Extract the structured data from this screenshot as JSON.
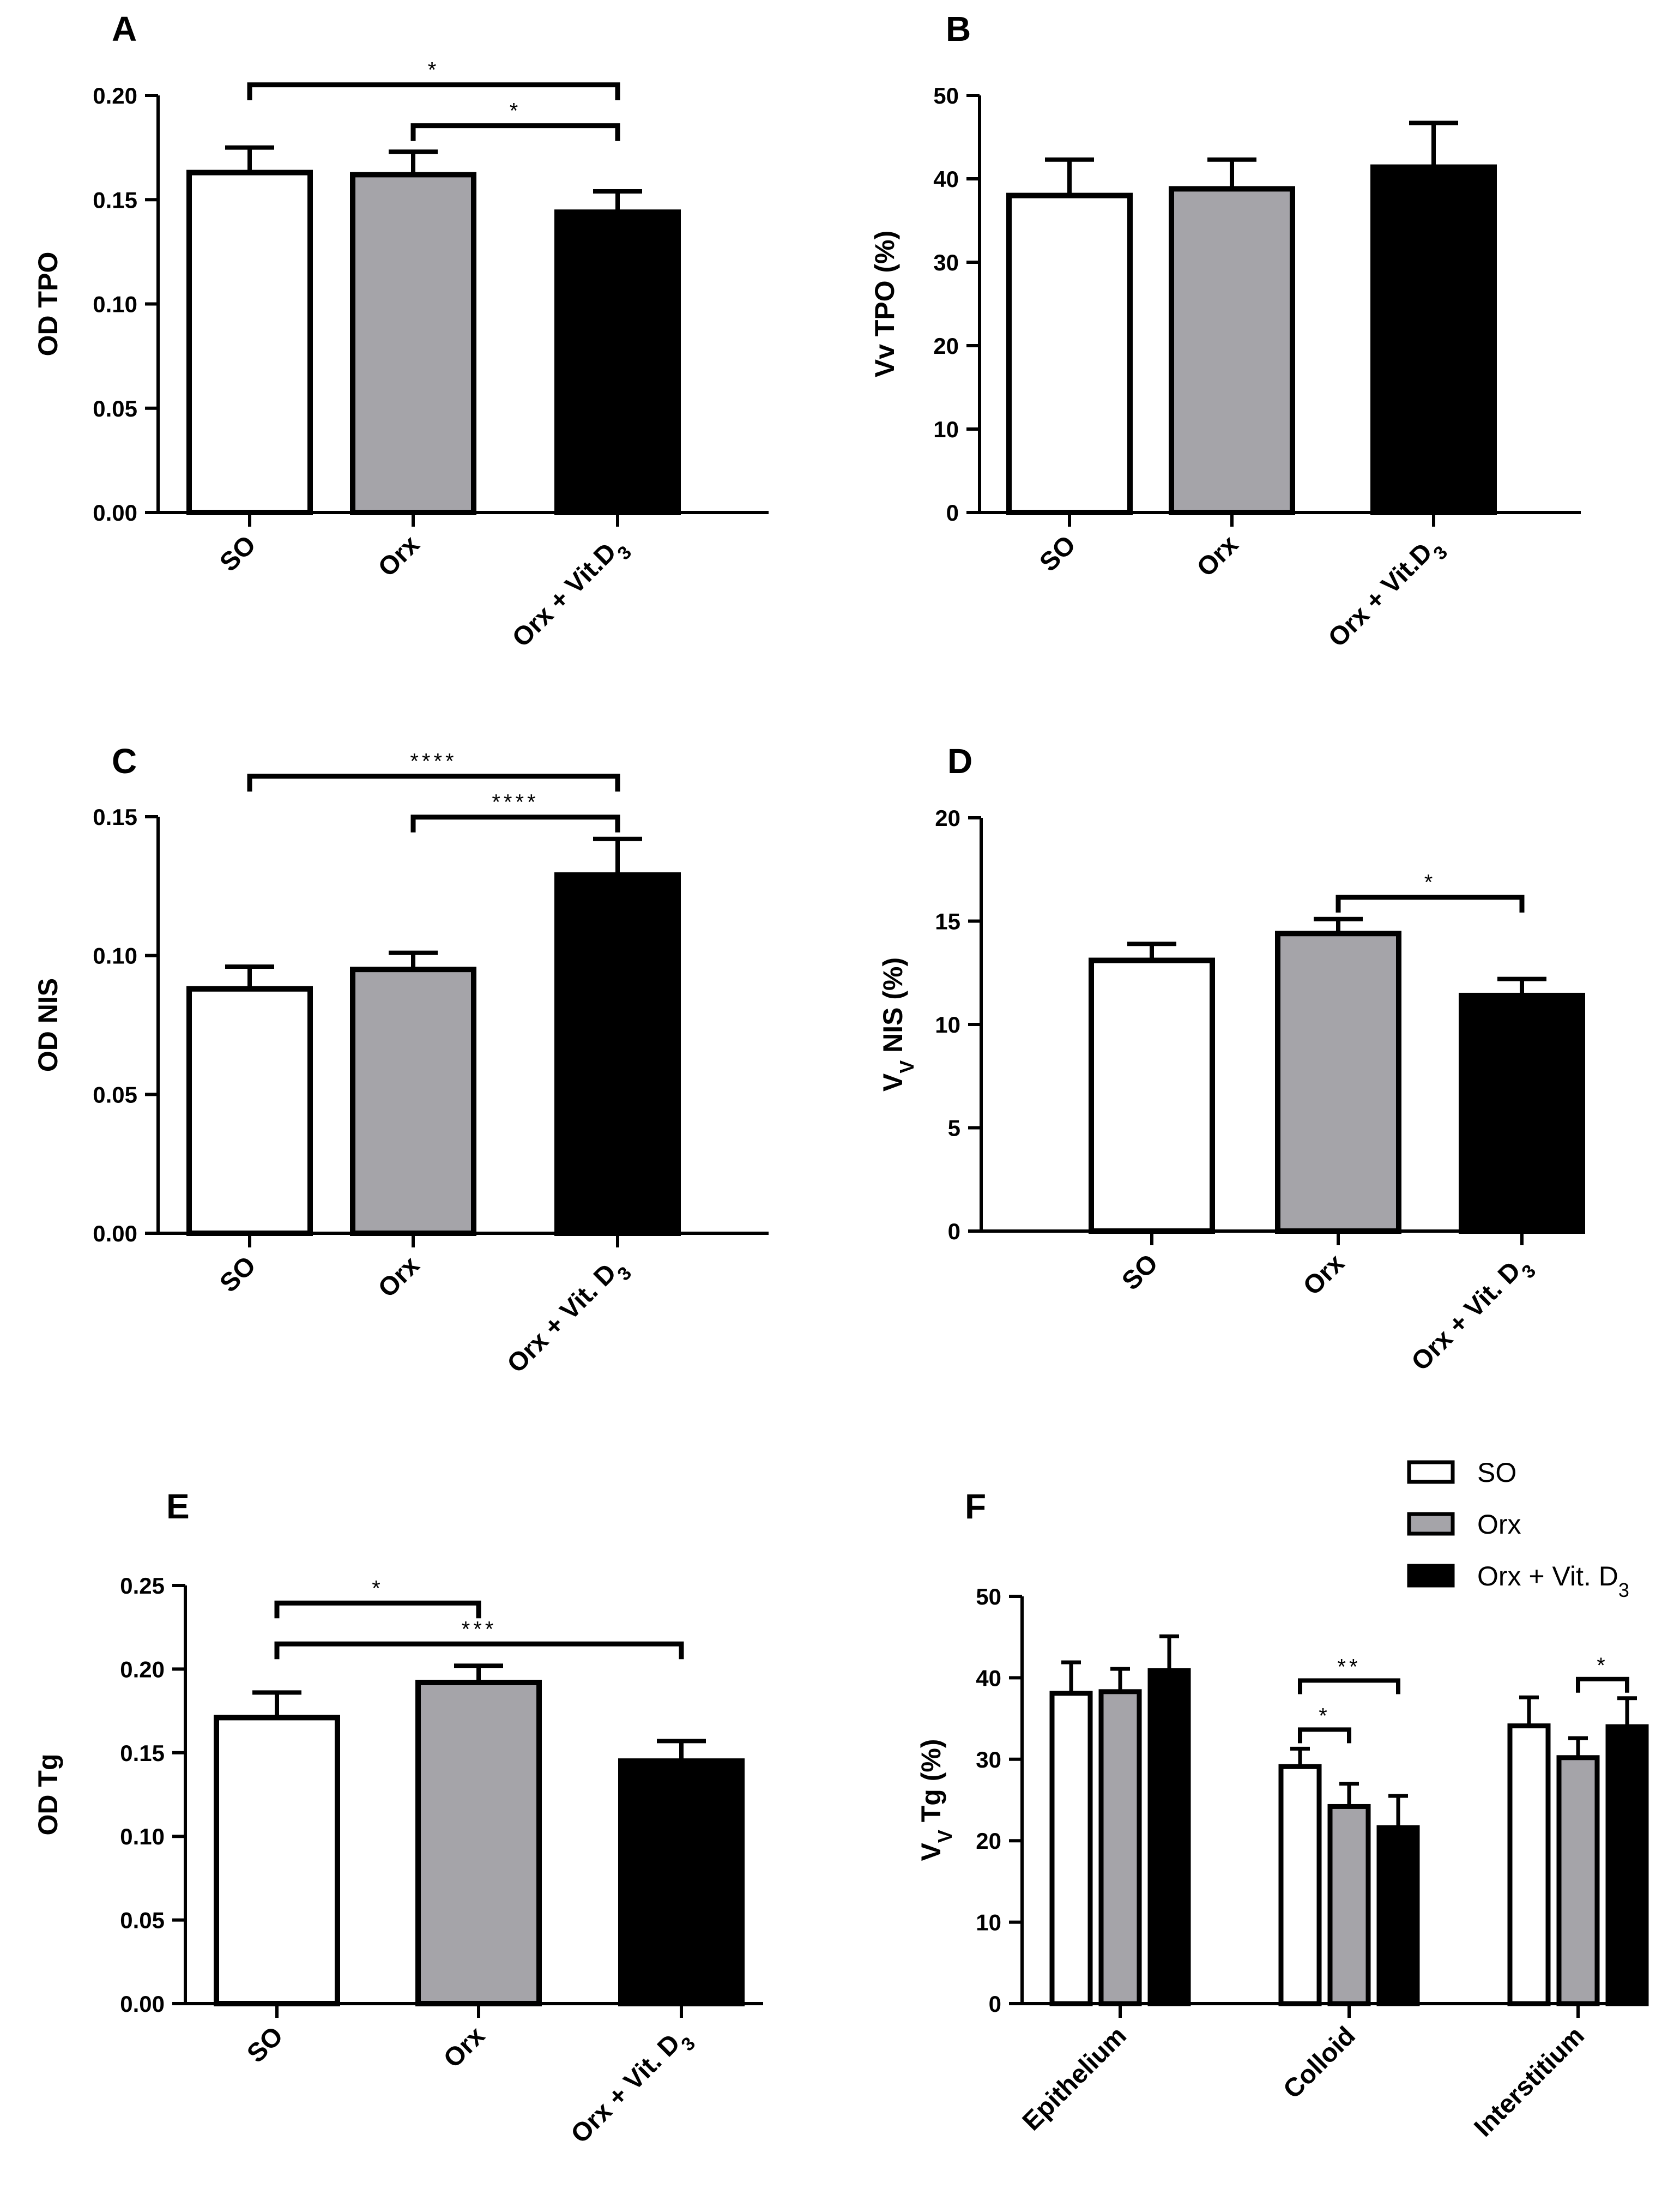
{
  "figure": {
    "colors": {
      "SO": "#ffffff",
      "Orx": "#a5a4a9",
      "Orx + Vit. D3": "#000000",
      "axis": "#000000"
    }
  },
  "chart_data": [
    {
      "panel": "A",
      "type": "bar",
      "ylabel": "OD TPO",
      "ylim": [
        0,
        0.2
      ],
      "yticks": [
        "0.00",
        "0.05",
        "0.10",
        "0.15",
        "0.20"
      ],
      "categories": [
        "SO",
        "Orx",
        "Orx + Vit.D3"
      ],
      "label_parts": [
        [
          "SO"
        ],
        [
          "Orx"
        ],
        [
          "Orx + Vit.D",
          "3"
        ]
      ],
      "groups": [
        "SO",
        "Orx",
        "Orx + Vit. D3"
      ],
      "values": [
        0.163,
        0.162,
        0.144
      ],
      "errors": [
        0.012,
        0.011,
        0.01
      ],
      "significance": [
        {
          "from": 0,
          "to": 2,
          "label": "*"
        },
        {
          "from": 1,
          "to": 2,
          "label": "*"
        }
      ]
    },
    {
      "panel": "B",
      "type": "bar",
      "ylabel": "Vv TPO (%)",
      "ylim": [
        0,
        50
      ],
      "yticks": [
        "0",
        "10",
        "20",
        "30",
        "40",
        "50"
      ],
      "categories": [
        "SO",
        "Orx",
        "Orx + Vit.D3"
      ],
      "label_parts": [
        [
          "SO"
        ],
        [
          "Orx"
        ],
        [
          "Orx + Vit.D",
          "3"
        ]
      ],
      "groups": [
        "SO",
        "Orx",
        "Orx + Vit. D3"
      ],
      "values": [
        38.0,
        38.8,
        41.4
      ],
      "errors": [
        4.3,
        3.5,
        5.3
      ],
      "significance": []
    },
    {
      "panel": "C",
      "type": "bar",
      "ylabel": "OD NIS",
      "ylim": [
        0,
        0.15
      ],
      "yticks": [
        "0.00",
        "0.05",
        "0.10",
        "0.15"
      ],
      "categories": [
        "SO",
        "Orx",
        "Orx + Vit. D3"
      ],
      "label_parts": [
        [
          "SO"
        ],
        [
          "Orx"
        ],
        [
          "Orx + Vit. D",
          "3"
        ]
      ],
      "groups": [
        "SO",
        "Orx",
        "Orx + Vit. D3"
      ],
      "values": [
        0.088,
        0.095,
        0.129
      ],
      "errors": [
        0.008,
        0.006,
        0.013
      ],
      "significance": [
        {
          "from": 0,
          "to": 2,
          "label": "****"
        },
        {
          "from": 1,
          "to": 2,
          "label": "****"
        }
      ]
    },
    {
      "panel": "D",
      "type": "bar",
      "ylabel": "VV NIS (%)",
      "ylabel_parts": [
        "V",
        "V",
        " NIS (%)"
      ],
      "ylim": [
        0,
        20
      ],
      "yticks": [
        "0",
        "5",
        "10",
        "15",
        "20"
      ],
      "categories": [
        "SO",
        "Orx",
        "Orx + Vit. D3"
      ],
      "label_parts": [
        [
          "SO"
        ],
        [
          "Orx"
        ],
        [
          "Orx + Vit. D",
          "3"
        ]
      ],
      "groups": [
        "SO",
        "Orx",
        "Orx + Vit. D3"
      ],
      "values": [
        13.1,
        14.4,
        11.4
      ],
      "errors": [
        0.8,
        0.7,
        0.8
      ],
      "significance": [
        {
          "from": 1,
          "to": 2,
          "label": "*"
        }
      ]
    },
    {
      "panel": "E",
      "type": "bar",
      "ylabel": "OD Tg",
      "ylim": [
        0,
        0.25
      ],
      "yticks": [
        "0.00",
        "0.05",
        "0.10",
        "0.15",
        "0.20",
        "0.25"
      ],
      "categories": [
        "SO",
        "Orx",
        "Orx + Vit. D3"
      ],
      "label_parts": [
        [
          "SO"
        ],
        [
          "Orx"
        ],
        [
          "Orx + Vit. D",
          "3"
        ]
      ],
      "groups": [
        "SO",
        "Orx",
        "Orx + Vit. D3"
      ],
      "values": [
        0.171,
        0.192,
        0.145
      ],
      "errors": [
        0.015,
        0.01,
        0.012
      ],
      "significance": [
        {
          "from": 0,
          "to": 1,
          "label": "*"
        },
        {
          "from": 0,
          "to": 2,
          "label": "***"
        }
      ]
    },
    {
      "panel": "F",
      "type": "bar",
      "ylabel": "VV Tg (%)",
      "ylabel_parts": [
        "V",
        "V",
        " Tg (%)"
      ],
      "ylim": [
        0,
        50
      ],
      "yticks": [
        "0",
        "10",
        "20",
        "30",
        "40",
        "50"
      ],
      "categories": [
        "Epithelium",
        "Colloid",
        "Interstitium"
      ],
      "legend": {
        "position": "top-right",
        "entries": [
          {
            "label": "SO",
            "parts": [
              "SO"
            ]
          },
          {
            "label": "Orx",
            "parts": [
              "Orx"
            ]
          },
          {
            "label": "Orx + Vit. D3",
            "parts": [
              "Orx + Vit. D",
              "3"
            ]
          }
        ]
      },
      "series": [
        {
          "name": "SO",
          "values": [
            38.1,
            29.1,
            34.1
          ],
          "errors": [
            3.8,
            2.2,
            3.5
          ]
        },
        {
          "name": "Orx",
          "values": [
            38.3,
            24.2,
            30.2
          ],
          "errors": [
            2.8,
            2.8,
            2.4
          ]
        },
        {
          "name": "Orx + Vit. D3",
          "values": [
            40.9,
            21.6,
            34.0
          ],
          "errors": [
            4.2,
            3.9,
            3.5
          ]
        }
      ],
      "significance": [
        {
          "category": 1,
          "from": 0,
          "to": 1,
          "label": "*"
        },
        {
          "category": 1,
          "from": 0,
          "to": 2,
          "label": "**"
        },
        {
          "category": 2,
          "from": 1,
          "to": 2,
          "label": "*"
        }
      ]
    }
  ]
}
